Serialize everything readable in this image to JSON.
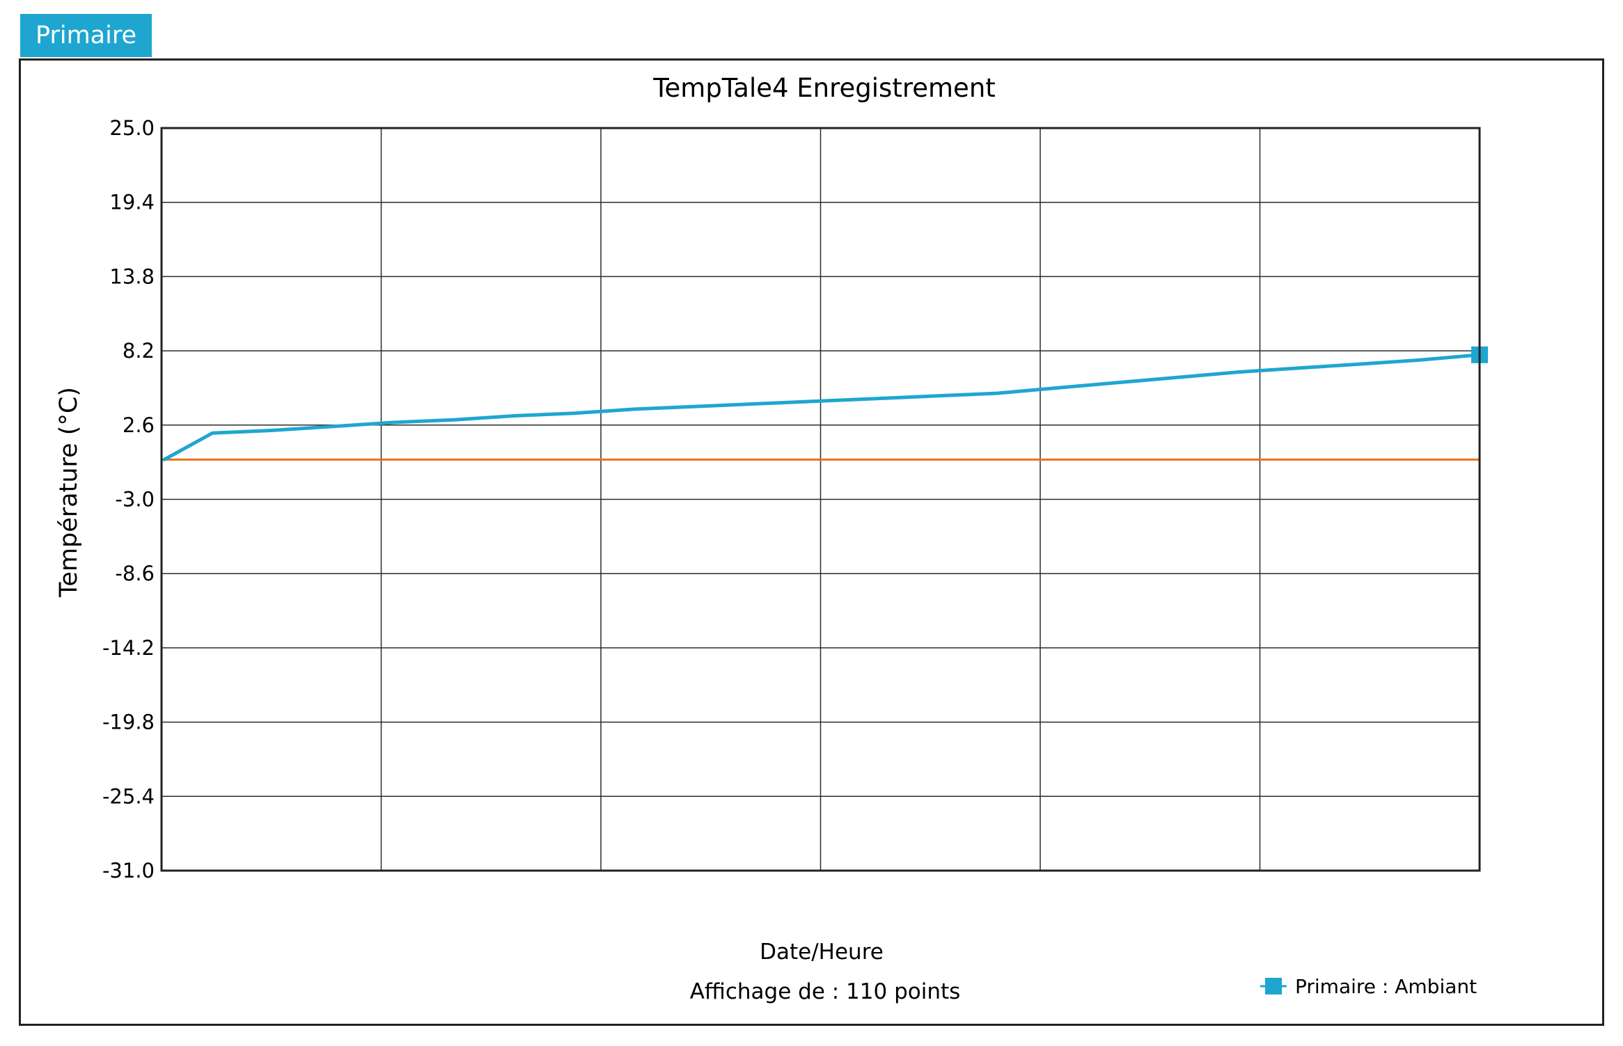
{
  "tab": {
    "label": "Primaire"
  },
  "colors": {
    "accent": "#1fa6d0",
    "threshold": "#e8731e",
    "grid": "#2b2b2b"
  },
  "chart_data": {
    "type": "line",
    "title": "TempTale4  Enregistrement",
    "xlabel": "Date/Heure",
    "ylabel": "Température (°C)",
    "ylim": [
      -31.0,
      25.0
    ],
    "yticks": [
      "25.0",
      "19.4",
      "13.8",
      "8.2",
      "2.6",
      "-3.0",
      "-8.6",
      "-14.2",
      "-19.8",
      "-25.4",
      "-31.0"
    ],
    "x_gridlines": 5,
    "grid": true,
    "x": [
      1,
      5,
      10,
      15,
      20,
      25,
      30,
      35,
      40,
      45,
      50,
      55,
      60,
      65,
      70,
      75,
      80,
      85,
      90,
      95,
      100,
      105,
      110
    ],
    "series": [
      {
        "name": "Primaire : Ambiant",
        "values": [
          0.0,
          2.0,
          2.2,
          2.5,
          2.8,
          3.0,
          3.3,
          3.5,
          3.8,
          4.0,
          4.2,
          4.4,
          4.6,
          4.8,
          5.0,
          5.4,
          5.8,
          6.2,
          6.6,
          6.9,
          7.2,
          7.5,
          7.9
        ],
        "color": "#1fa6d0"
      }
    ],
    "thresholds": [
      {
        "value": 0.0,
        "color": "#e8731e"
      }
    ],
    "legend": {
      "position": "bottom-right",
      "label": "Primaire : Ambiant"
    },
    "footer": "Affichage de : 110 points"
  }
}
